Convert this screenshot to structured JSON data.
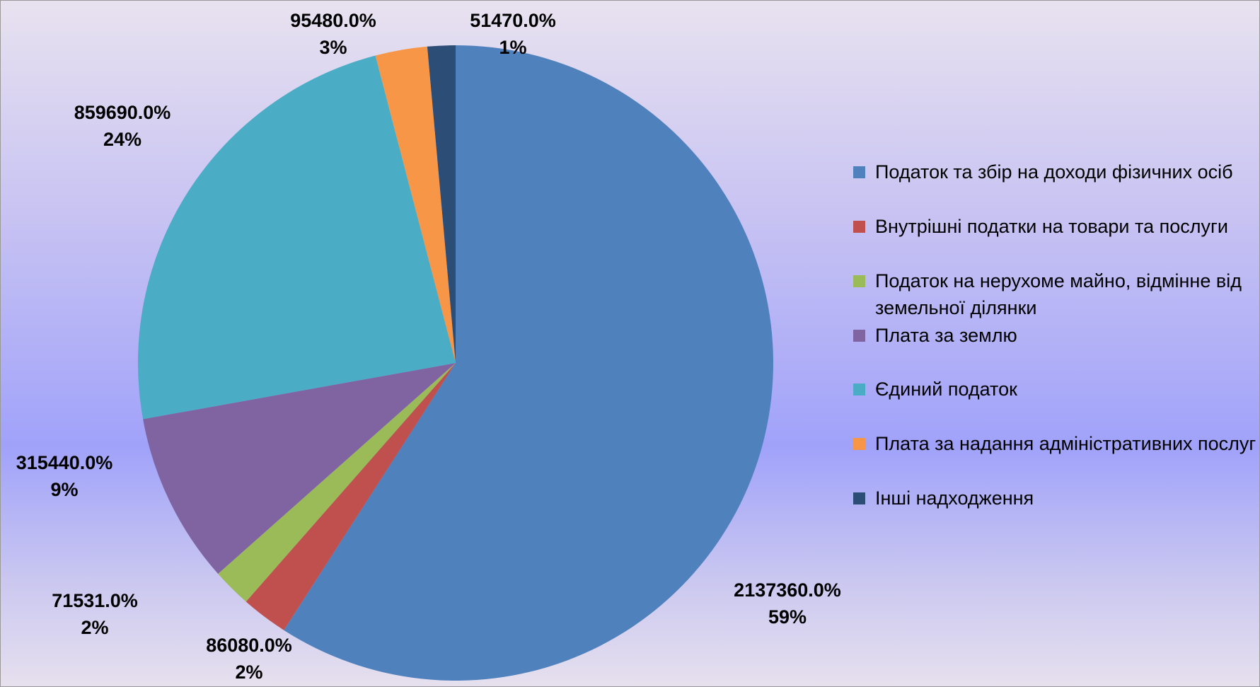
{
  "chart_data": {
    "type": "pie",
    "categories": [
      "Податок та збір на доходи фізичних осіб",
      "Внутрішні податки на товари та послуги",
      "Податок на нерухоме майно, відмінне від земельної ділянки",
      "Плата за землю",
      "Єдиний податок",
      "Плата за надання адміністративних послуг",
      "Інші надходження"
    ],
    "values": [
      2137360,
      86080,
      71531,
      315440,
      859690,
      95480,
      51470
    ],
    "value_labels": [
      "2137360.0%",
      "86080.0%",
      "71531.0%",
      "315440.0%",
      "859690.0%",
      "95480.0%",
      "51470.0%"
    ],
    "percent_labels": [
      "59%",
      "2%",
      "2%",
      "9%",
      "24%",
      "3%",
      "1%"
    ],
    "colors": [
      "#4f81bd",
      "#c0504d",
      "#9bbb59",
      "#8064a2",
      "#4bacc6",
      "#f79646",
      "#2c4d75"
    ],
    "legend": "right"
  }
}
